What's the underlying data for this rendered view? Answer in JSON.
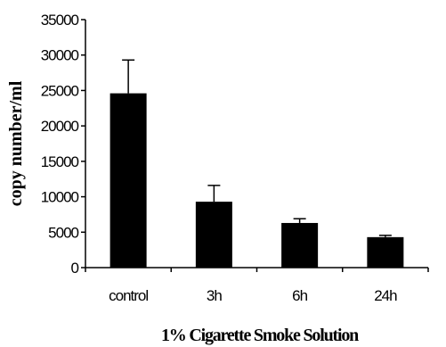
{
  "chart_data": {
    "type": "bar",
    "xlabel": "1%  Cigarette Smoke Solution",
    "ylabel": "copy number/ml",
    "categories": [
      "control",
      "3h",
      "6h",
      "24h"
    ],
    "values": [
      24600,
      9300,
      6300,
      4300
    ],
    "error_plus": [
      4700,
      2300,
      600,
      250
    ],
    "ylim": [
      0,
      35000
    ],
    "yticks": [
      0,
      5000,
      10000,
      15000,
      20000,
      25000,
      30000,
      35000
    ],
    "grid": false,
    "bar_color": "#000000"
  }
}
